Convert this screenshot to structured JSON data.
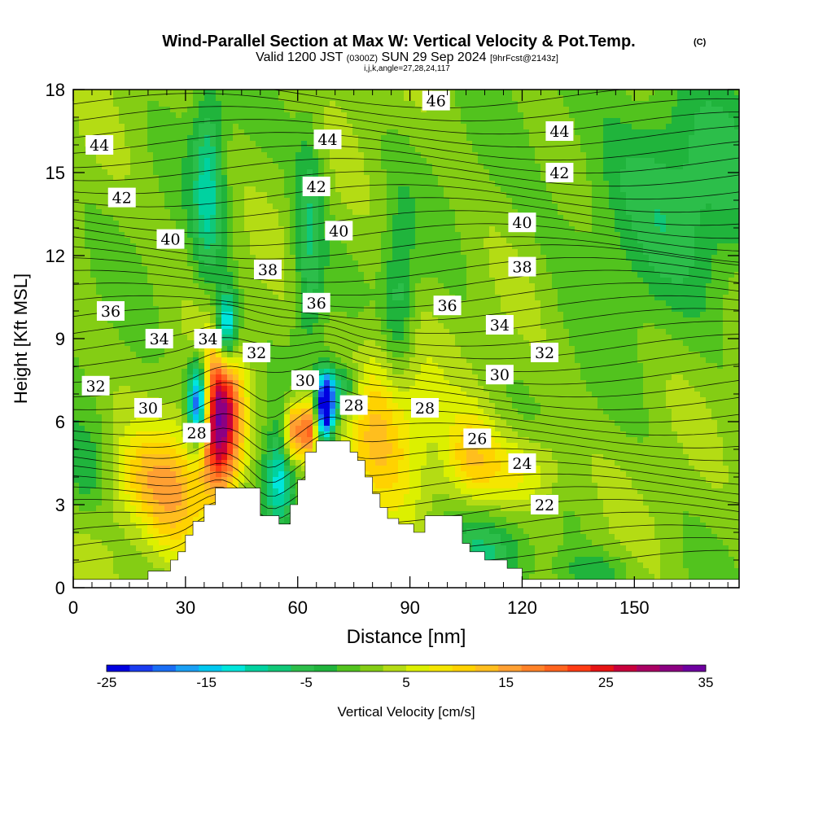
{
  "chart_data": {
    "type": "heatmap",
    "title": "Wind-Parallel Section at Max W: Vertical Velocity & Pot.Temp.",
    "copyright_mark": "(C)",
    "subtitle_line1_a": "Valid 1200 JST",
    "subtitle_line1_utc": "(0300Z)",
    "subtitle_line1_b": "SUN 29 Sep 2024",
    "subtitle_line1_fcst": "[9hrFcst@2143z]",
    "subtitle_line2": "i,j,k,angle=27,28,24,117",
    "xlabel": "Distance [nm]",
    "ylabel": "Height [Kft MSL]",
    "xlim": [
      0,
      178
    ],
    "ylim": [
      0,
      18
    ],
    "xticks": [
      0,
      30,
      60,
      90,
      120,
      150
    ],
    "yticks": [
      0,
      3,
      6,
      9,
      12,
      15,
      18
    ],
    "colorbar": {
      "label": "Vertical Velocity [cm/s]",
      "min": -25,
      "max": 35,
      "step": 2.5,
      "tick_labels": [
        "-25",
        "-15",
        "-5",
        "5",
        "15",
        "25",
        "35"
      ],
      "tick_values": [
        -25,
        -15,
        -5,
        5,
        15,
        25,
        35
      ],
      "colors": [
        "#0000e0",
        "#1a3cf0",
        "#1a6ef5",
        "#1aa0f5",
        "#00c8f0",
        "#00e6dc",
        "#00d2a0",
        "#10c878",
        "#2cbe4a",
        "#20b43c",
        "#52c31e",
        "#84cd14",
        "#b4dc14",
        "#dcf000",
        "#f5e600",
        "#ffd200",
        "#ffbe1e",
        "#ffa032",
        "#ff8228",
        "#ff641e",
        "#ff3c14",
        "#e61414",
        "#c8003c",
        "#aa0064",
        "#8c0082",
        "#6e00a0"
      ]
    },
    "terrain_profile": [
      [
        0,
        0.3
      ],
      [
        20,
        0.3
      ],
      [
        20,
        0.6
      ],
      [
        26,
        0.6
      ],
      [
        26,
        1.0
      ],
      [
        28,
        1.0
      ],
      [
        28,
        1.3
      ],
      [
        30,
        1.3
      ],
      [
        30,
        1.9
      ],
      [
        32,
        1.9
      ],
      [
        32,
        2.4
      ],
      [
        35,
        2.4
      ],
      [
        35,
        3.0
      ],
      [
        38,
        3.0
      ],
      [
        38,
        3.6
      ],
      [
        50,
        3.6
      ],
      [
        50,
        2.6
      ],
      [
        55,
        2.6
      ],
      [
        55,
        2.3
      ],
      [
        58,
        2.3
      ],
      [
        58,
        3.0
      ],
      [
        60,
        3.0
      ],
      [
        60,
        3.9
      ],
      [
        62,
        3.9
      ],
      [
        62,
        4.9
      ],
      [
        65,
        4.9
      ],
      [
        65,
        5.3
      ],
      [
        74,
        5.3
      ],
      [
        74,
        4.9
      ],
      [
        76,
        4.9
      ],
      [
        76,
        4.6
      ],
      [
        78,
        4.6
      ],
      [
        78,
        4.0
      ],
      [
        80,
        4.0
      ],
      [
        80,
        3.4
      ],
      [
        82,
        3.4
      ],
      [
        82,
        2.9
      ],
      [
        84,
        2.9
      ],
      [
        84,
        2.5
      ],
      [
        87,
        2.5
      ],
      [
        87,
        2.3
      ],
      [
        91,
        2.3
      ],
      [
        91,
        2.0
      ],
      [
        94,
        2.0
      ],
      [
        94,
        2.6
      ],
      [
        104,
        2.6
      ],
      [
        104,
        1.6
      ],
      [
        106,
        1.6
      ],
      [
        106,
        1.3
      ],
      [
        110,
        1.3
      ],
      [
        110,
        1.0
      ],
      [
        116,
        1.0
      ],
      [
        116,
        0.7
      ],
      [
        120,
        0.7
      ],
      [
        120,
        0.3
      ],
      [
        178,
        0.3
      ]
    ],
    "theta_contours": {
      "unit": "C",
      "labels": [
        {
          "text": "44",
          "x": 7,
          "y": 16.0
        },
        {
          "text": "42",
          "x": 13,
          "y": 14.1
        },
        {
          "text": "40",
          "x": 26,
          "y": 12.6
        },
        {
          "text": "38",
          "x": 52,
          "y": 11.5
        },
        {
          "text": "36",
          "x": 10,
          "y": 10.0
        },
        {
          "text": "34",
          "x": 23,
          "y": 9.0
        },
        {
          "text": "34",
          "x": 36,
          "y": 9.0
        },
        {
          "text": "32",
          "x": 49,
          "y": 8.5
        },
        {
          "text": "32",
          "x": 6,
          "y": 7.3
        },
        {
          "text": "30",
          "x": 20,
          "y": 6.5
        },
        {
          "text": "28",
          "x": 33,
          "y": 5.6
        },
        {
          "text": "44",
          "x": 68,
          "y": 16.2
        },
        {
          "text": "42",
          "x": 65,
          "y": 14.5
        },
        {
          "text": "40",
          "x": 71,
          "y": 12.9
        },
        {
          "text": "36",
          "x": 65,
          "y": 10.3
        },
        {
          "text": "30",
          "x": 62,
          "y": 7.5
        },
        {
          "text": "28",
          "x": 75,
          "y": 6.6
        },
        {
          "text": "46",
          "x": 97,
          "y": 17.6
        },
        {
          "text": "44",
          "x": 130,
          "y": 16.5
        },
        {
          "text": "42",
          "x": 130,
          "y": 15.0
        },
        {
          "text": "40",
          "x": 120,
          "y": 13.2
        },
        {
          "text": "38",
          "x": 120,
          "y": 11.6
        },
        {
          "text": "36",
          "x": 100,
          "y": 10.2
        },
        {
          "text": "34",
          "x": 114,
          "y": 9.5
        },
        {
          "text": "32",
          "x": 126,
          "y": 8.5
        },
        {
          "text": "30",
          "x": 114,
          "y": 7.7
        },
        {
          "text": "28",
          "x": 94,
          "y": 6.5
        },
        {
          "text": "26",
          "x": 108,
          "y": 5.4
        },
        {
          "text": "24",
          "x": 120,
          "y": 4.5
        },
        {
          "text": "22",
          "x": 126,
          "y": 3.0
        }
      ]
    },
    "w_features": [
      {
        "x": 39,
        "y": 6.0,
        "sx": 4,
        "sy": 1.9,
        "w": 34
      },
      {
        "x": 33.5,
        "y": 6.6,
        "sx": 2,
        "sy": 1.1,
        "w": -34
      },
      {
        "x": 41,
        "y": 9.3,
        "sx": 2,
        "sy": 1.0,
        "w": -22
      },
      {
        "x": 67.5,
        "y": 6.6,
        "sx": 1.6,
        "sy": 0.8,
        "w": -36
      },
      {
        "x": 63,
        "y": 5.7,
        "sx": 1.6,
        "sy": 0.8,
        "w": 22
      },
      {
        "x": 59,
        "y": 5.6,
        "sx": 1.8,
        "sy": 0.8,
        "w": 20
      },
      {
        "x": 55,
        "y": 3.8,
        "sx": 3,
        "sy": 1.2,
        "w": -15
      },
      {
        "x": 72,
        "y": 7.1,
        "sx": 3,
        "sy": 0.7,
        "w": -12
      },
      {
        "x": 27,
        "y": 3.2,
        "sx": 6,
        "sy": 1.7,
        "w": 11
      },
      {
        "x": 18,
        "y": 4.0,
        "sx": 6,
        "sy": 1.2,
        "w": 7
      },
      {
        "x": 83,
        "y": 6.0,
        "sx": 8,
        "sy": 2.2,
        "w": 12
      },
      {
        "x": 106,
        "y": 4.7,
        "sx": 5,
        "sy": 1.2,
        "w": 9
      },
      {
        "x": 120,
        "y": 4.2,
        "sx": 8,
        "sy": 1.0,
        "w": 8
      },
      {
        "x": 36,
        "y": 14.5,
        "sx": 3,
        "sy": 2.5,
        "w": -11
      },
      {
        "x": 63,
        "y": 12.5,
        "sx": 3,
        "sy": 3,
        "w": -9
      },
      {
        "x": 87,
        "y": 10.0,
        "sx": 3,
        "sy": 2.5,
        "w": -8
      },
      {
        "x": 162,
        "y": 14.5,
        "sx": 20,
        "sy": 3,
        "w": -7
      },
      {
        "x": 110,
        "y": 1.3,
        "sx": 8,
        "sy": 1.0,
        "w": -7
      },
      {
        "x": 138,
        "y": 0.6,
        "sx": 8,
        "sy": 0.5,
        "w": -5
      },
      {
        "x": 3,
        "y": 4.0,
        "sx": 4,
        "sy": 1.2,
        "w": -5
      }
    ]
  }
}
